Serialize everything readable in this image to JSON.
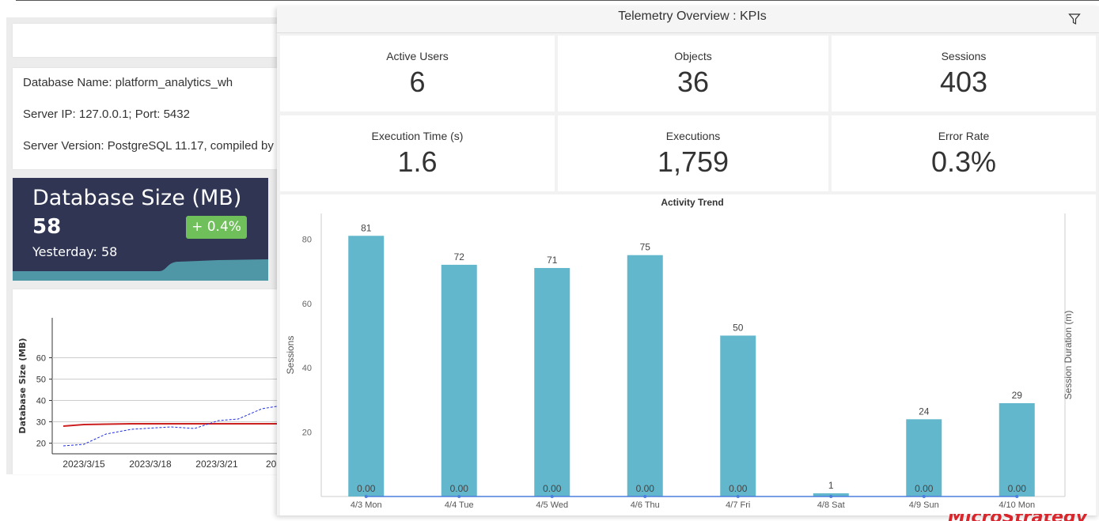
{
  "panel": {
    "title": "Telemetry Overview : KPIs",
    "filter_icon": "filter-icon"
  },
  "kpis": [
    {
      "label": "Active Users",
      "value": "6"
    },
    {
      "label": "Objects",
      "value": "36"
    },
    {
      "label": "Sessions",
      "value": "403"
    },
    {
      "label": "Execution Time (s)",
      "value": "1.6"
    },
    {
      "label": "Executions",
      "value": "1,759"
    },
    {
      "label": "Error Rate",
      "value": "0.3%"
    }
  ],
  "server_info": {
    "db_name": "Database Name: platform_analytics_wh",
    "server_ip": "Server IP: 127.0.0.1; Port: 5432",
    "server_version": "Server Version: PostgreSQL 11.17, compiled by"
  },
  "db_size_card": {
    "title": "Database Size (MB)",
    "value": "58",
    "yesterday": "Yesterday: 58",
    "change": "+ 0.4%",
    "colors": {
      "bg": "#2f3552",
      "badge": "#6fbf5a",
      "area": "#4f97a6"
    }
  },
  "size_chart": {
    "ylabel": "Database Size (MB)",
    "yticks": [
      "20",
      "30",
      "40",
      "50",
      "60"
    ],
    "xticks": [
      "2023/3/15",
      "2023/3/18",
      "2023/3/21",
      "202"
    ]
  },
  "chart_data": {
    "type": "bar",
    "title": "Activity Trend",
    "ylabel": "Sessions",
    "y2label": "Session Duration (m)",
    "ylim": [
      0,
      85
    ],
    "yticks": [
      20,
      40,
      60,
      80
    ],
    "categories": [
      "4/3  Mon",
      "4/4  Tue",
      "4/5  Wed",
      "4/6  Thu",
      "4/7  Fri",
      "4/8  Sat",
      "4/9  Sun",
      "4/10  Mon"
    ],
    "series": [
      {
        "values": [
          81,
          72,
          71,
          75,
          50,
          1,
          24,
          29
        ],
        "color": "#62b7cc"
      },
      {
        "values": [
          0,
          0,
          0,
          0,
          0,
          null,
          0,
          0
        ],
        "labels": [
          "0.00",
          "0.00",
          "0.00",
          "0.00",
          "0.00",
          "",
          "0.00",
          "0.00"
        ],
        "color": "#4a7ede"
      }
    ],
    "grid": false
  },
  "branding": {
    "text": "MicroStrategy"
  }
}
